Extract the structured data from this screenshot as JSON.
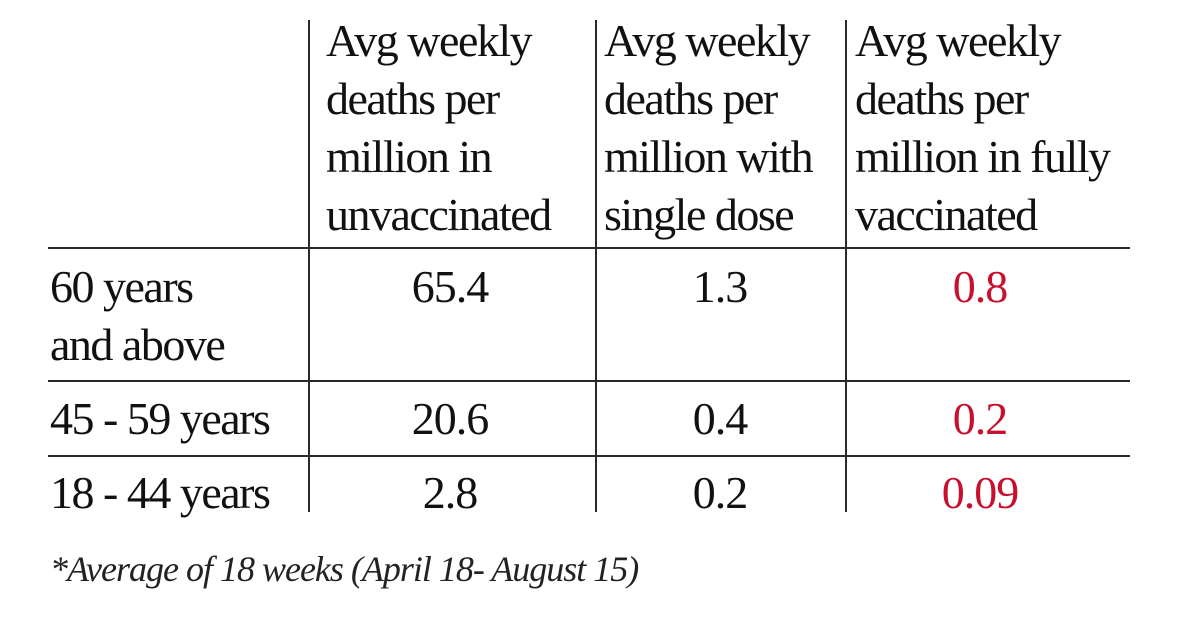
{
  "chart_data": {
    "type": "table",
    "columns": [
      "Avg weekly\ndeaths per\nmillion in\nunvaccinated",
      "Avg weekly\ndeaths per\nmillion with\nsingle dose",
      "Avg weekly\ndeaths per\nmillion in fully\nvaccinated"
    ],
    "rows": [
      {
        "label": "60 years\nand above",
        "values": [
          "65.4",
          "1.3",
          "0.8"
        ]
      },
      {
        "label": "45 - 59 years",
        "values": [
          "20.6",
          "0.4",
          "0.2"
        ]
      },
      {
        "label": "18 - 44 years",
        "values": [
          "2.8",
          "0.2",
          "0.09"
        ]
      }
    ],
    "highlight_color": "#c8102e",
    "footnote": "*Average of 18 weeks (April 18- August 15)"
  }
}
